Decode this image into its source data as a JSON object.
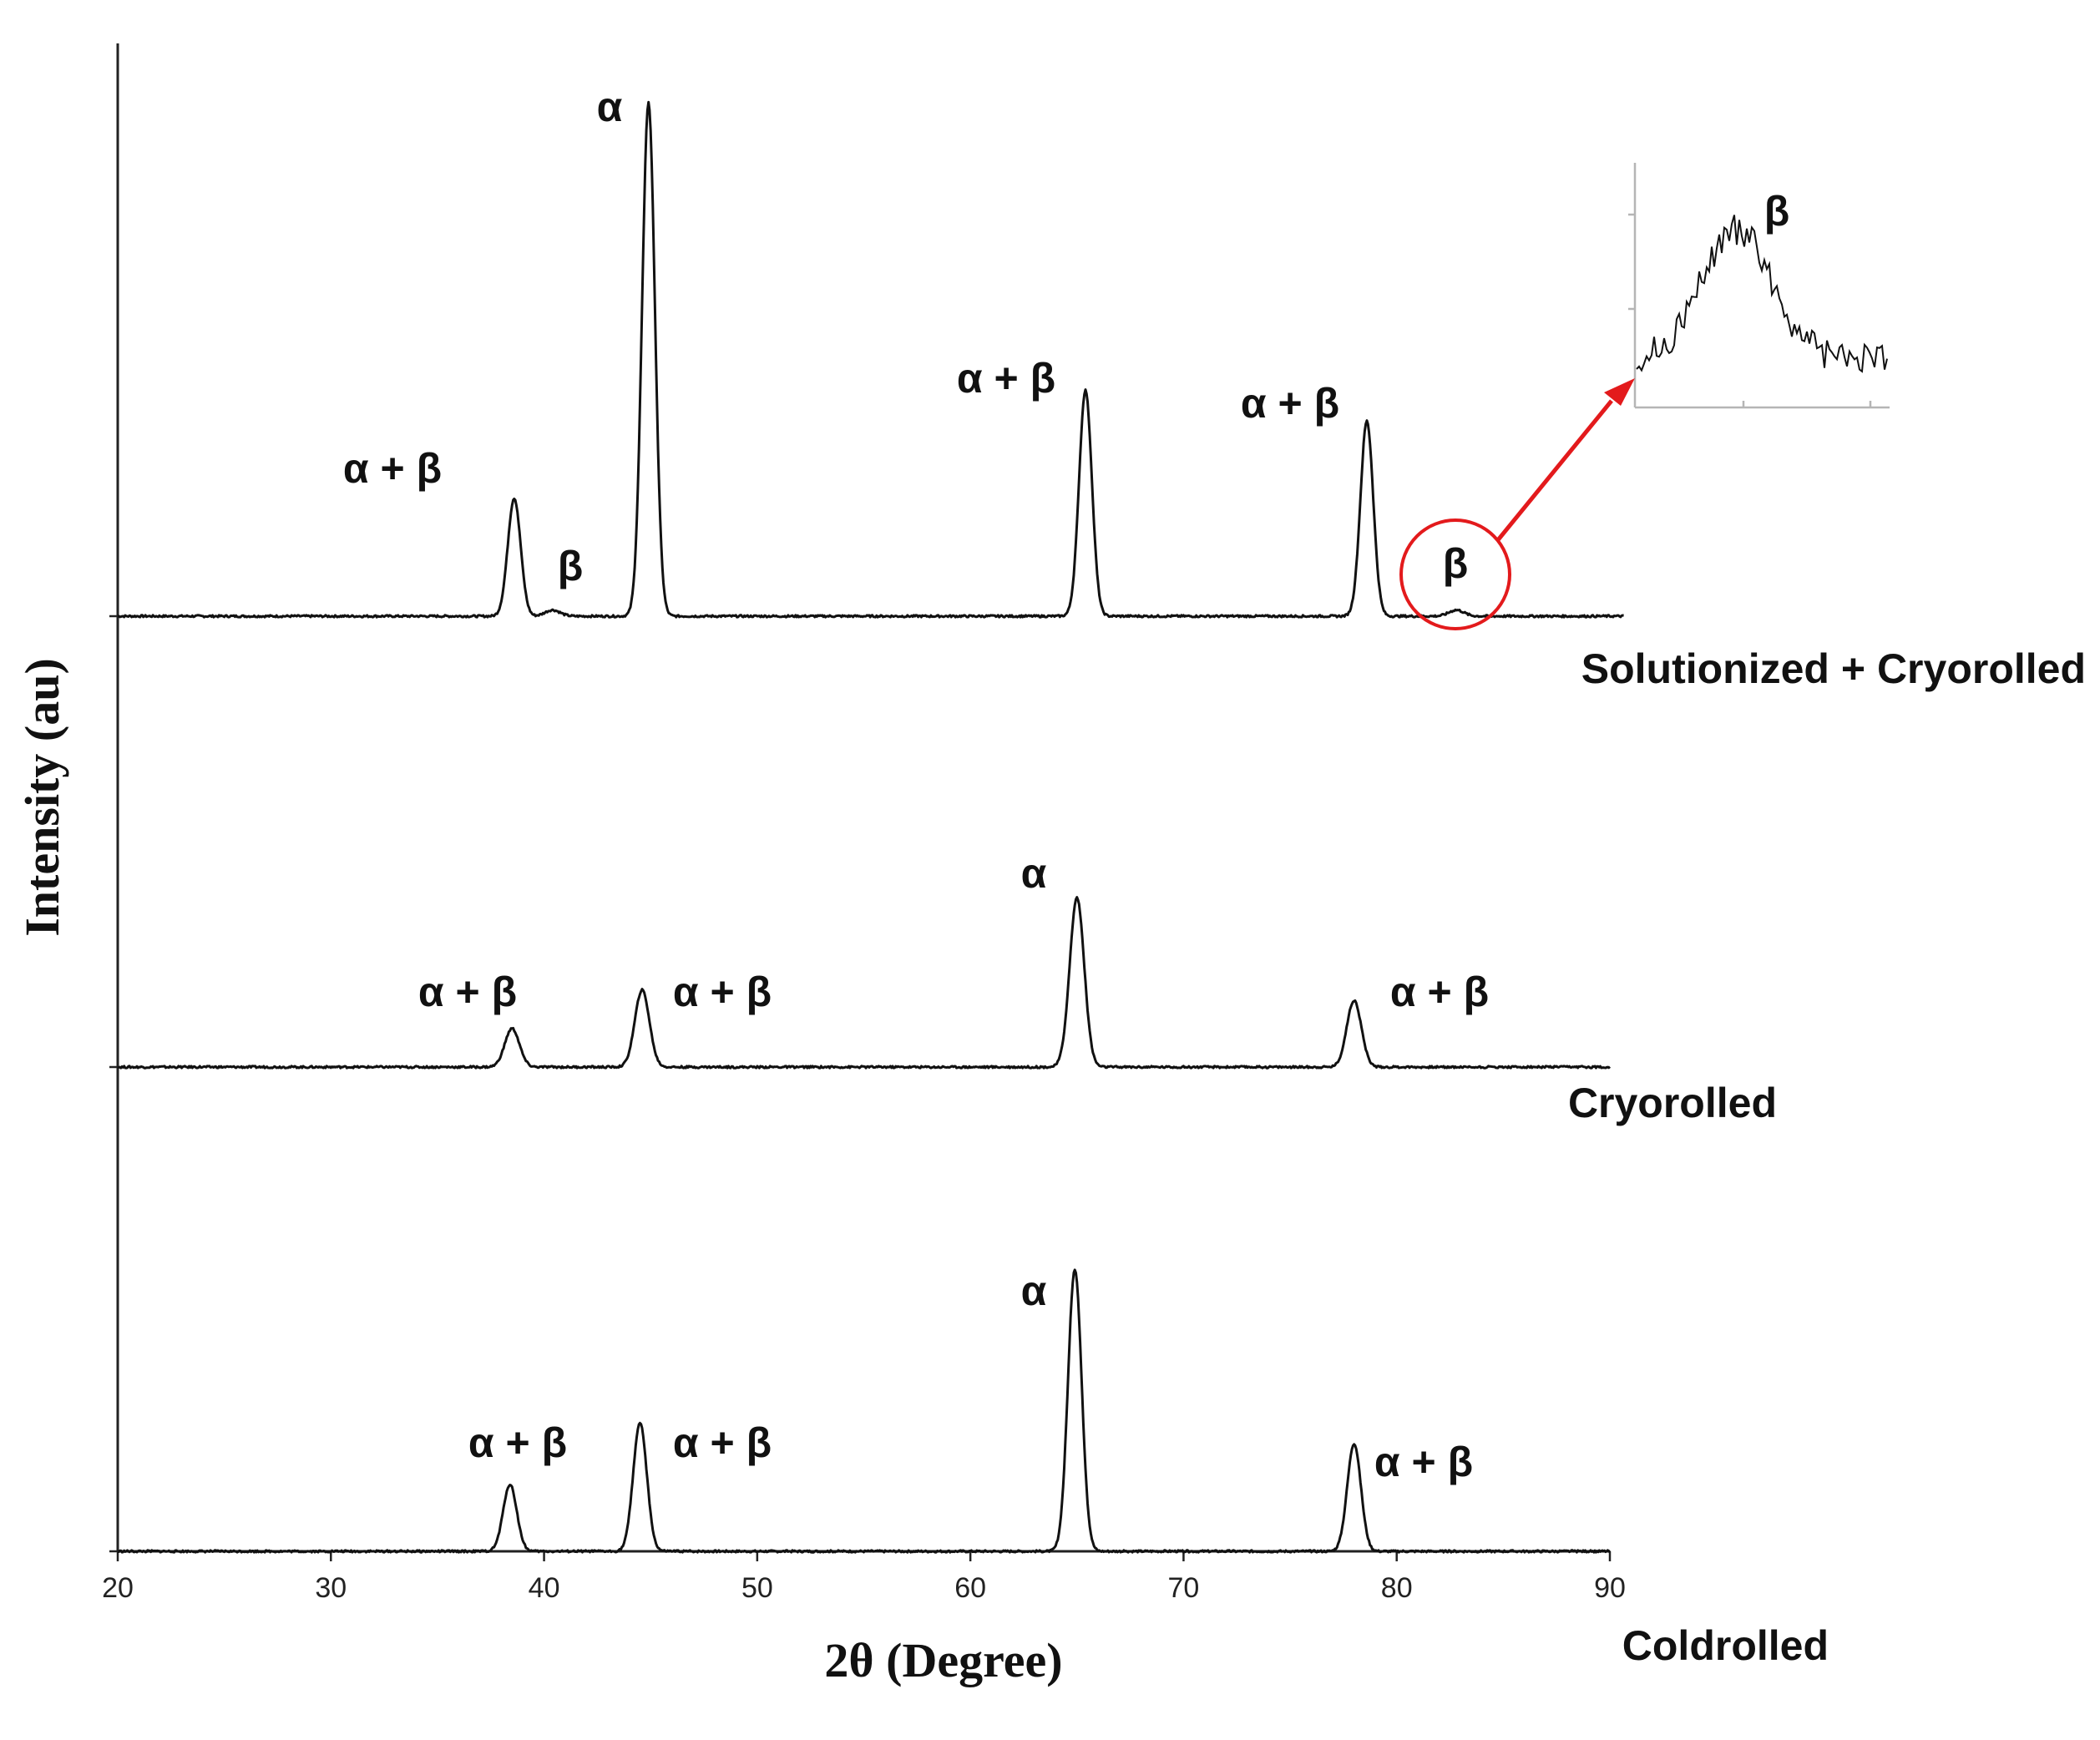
{
  "chart_data": {
    "type": "line",
    "title": "",
    "xlabel": "2θ (Degree)",
    "ylabel": "Intensity (au)",
    "xlim": [
      20,
      90
    ],
    "xticks": [
      20,
      30,
      40,
      50,
      60,
      70,
      80,
      90
    ],
    "grid": false,
    "layout": "stacked",
    "series": [
      {
        "name": "Solutionized + Cryorolled",
        "peaks": [
          {
            "x": 38.6,
            "y": 0.23,
            "label": "α + β"
          },
          {
            "x": 40.4,
            "y": 0.012,
            "label": "β"
          },
          {
            "x": 44.9,
            "y": 1.0,
            "label": "α"
          },
          {
            "x": 65.4,
            "y": 0.44,
            "label": "α + β"
          },
          {
            "x": 78.6,
            "y": 0.38,
            "label": "α + β"
          },
          {
            "x": 82.8,
            "y": 0.012,
            "label": "β"
          }
        ]
      },
      {
        "name": "Cryorolled",
        "peaks": [
          {
            "x": 38.5,
            "y": 0.075,
            "label": "α + β"
          },
          {
            "x": 44.6,
            "y": 0.15,
            "label": "α + β"
          },
          {
            "x": 65.0,
            "y": 0.33,
            "label": "α"
          },
          {
            "x": 78.0,
            "y": 0.13,
            "label": "α + β"
          }
        ]
      },
      {
        "name": "Coldrolled",
        "peaks": [
          {
            "x": 38.4,
            "y": 0.13,
            "label": "α + β"
          },
          {
            "x": 44.5,
            "y": 0.25,
            "label": "α + β"
          },
          {
            "x": 64.9,
            "y": 0.55,
            "label": "α"
          },
          {
            "x": 78.0,
            "y": 0.21,
            "label": "α + β"
          }
        ]
      }
    ],
    "inset": {
      "label": "β",
      "series": "Solutionized + Cryorolled",
      "peak_x": 82.8
    },
    "annotation_color": "#e31a1c"
  }
}
